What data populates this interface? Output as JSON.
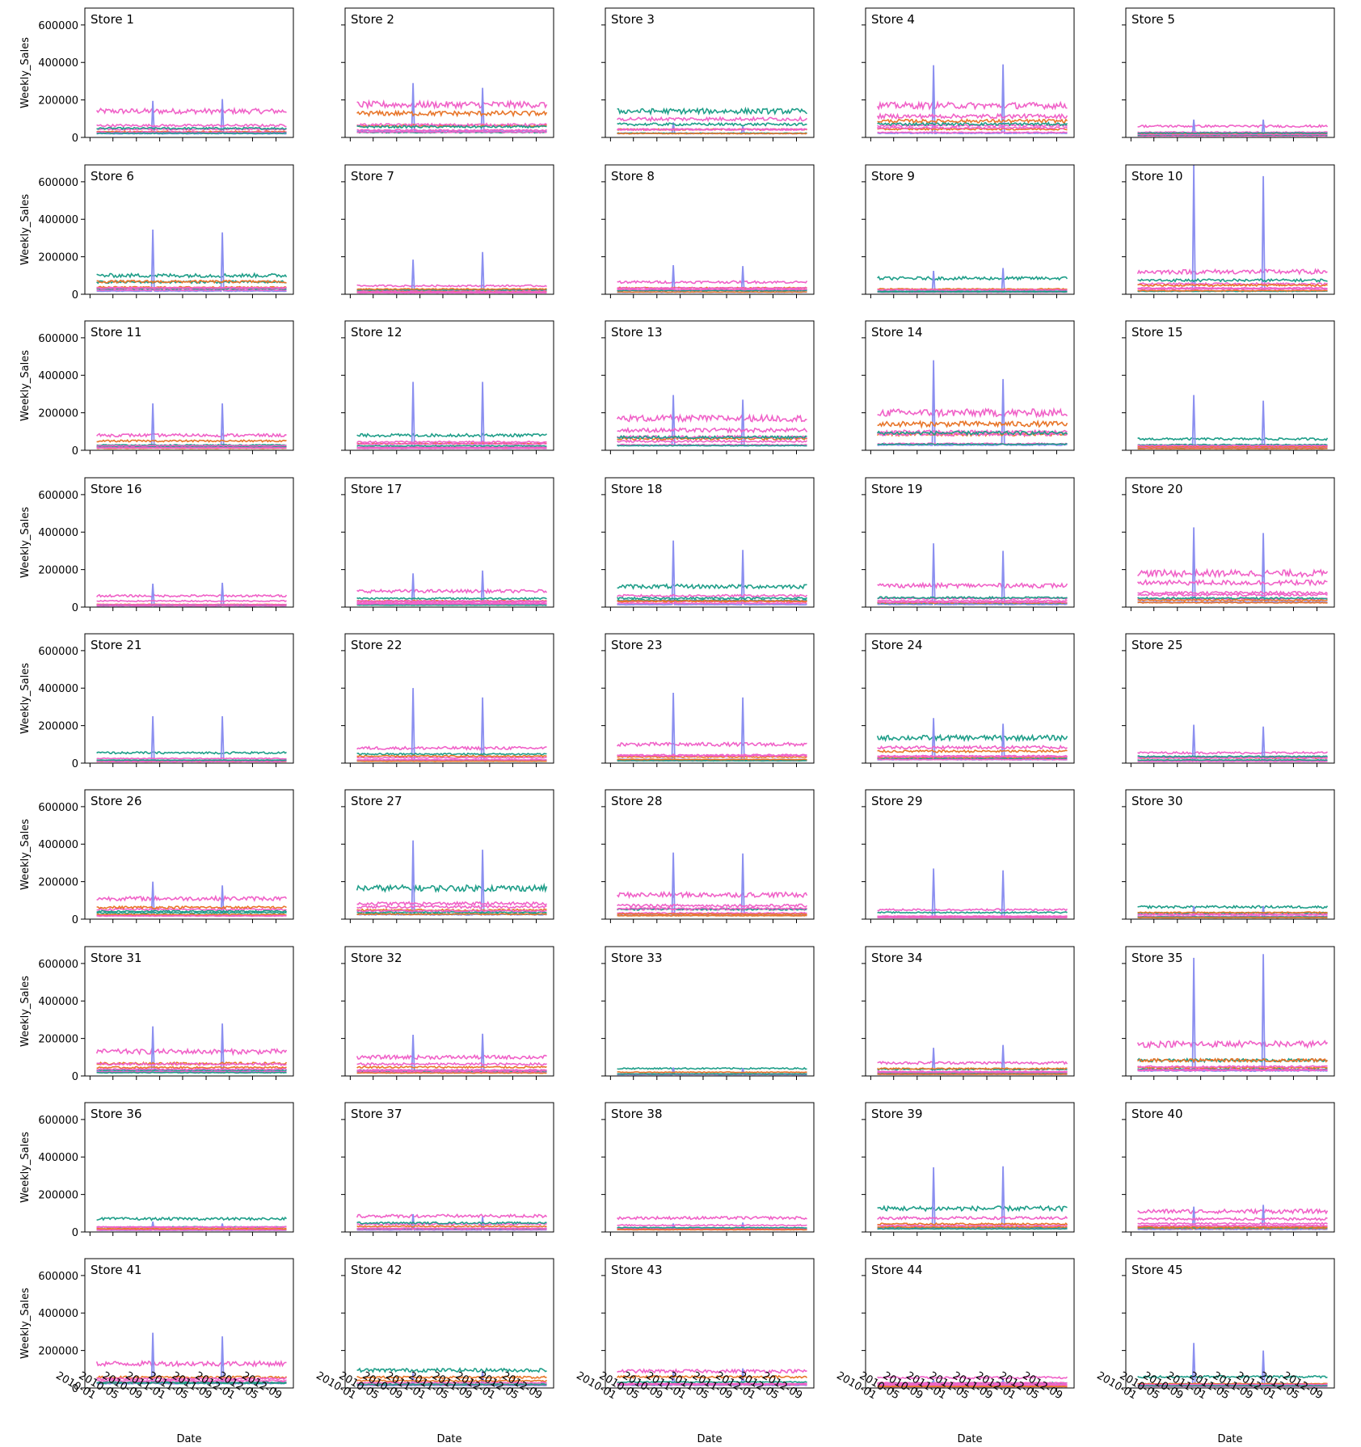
{
  "chart_data": {
    "type": "line",
    "layout": {
      "rows": 9,
      "cols": 5,
      "sharex": true,
      "sharey": true
    },
    "xlabel": "Date",
    "ylabel": "Weekly_Sales",
    "ylim": [
      0,
      690000
    ],
    "xlim": [
      "2009-12-05",
      "2012-12-01"
    ],
    "yticks": [
      0,
      200000,
      400000,
      600000
    ],
    "ytick_labels": [
      "0",
      "200000",
      "400000",
      "600000"
    ],
    "xticks": [
      "2010-01-01",
      "2010-05-01",
      "2010-09-01",
      "2011-01-01",
      "2011-05-01",
      "2011-09-01",
      "2012-01-01",
      "2012-05-01",
      "2012-09-01"
    ],
    "xtick_labels": [
      "2010-01",
      "2010-05",
      "2010-09",
      "2011-01",
      "2011-05",
      "2011-09",
      "2012-01",
      "2012-05",
      "2012-09"
    ],
    "date_range": [
      "2010-02-05",
      "2012-10-26"
    ],
    "palette": [
      "#1f9e89",
      "#e8762a",
      "#8b8ff0",
      "#f062c8"
    ],
    "series_note": "",
    "stores": [
      {
        "title": "Store 1",
        "top": 140000,
        "spikes": [
          195000,
          205000
        ]
      },
      {
        "title": "Store 2",
        "top": 175000,
        "spikes": [
          290000,
          265000
        ]
      },
      {
        "title": "Store 3",
        "top": 140000,
        "spikes": [
          80000,
          60000
        ]
      },
      {
        "title": "Store 4",
        "top": 170000,
        "spikes": [
          385000,
          390000
        ]
      },
      {
        "title": "Store 5",
        "top": 60000,
        "spikes": [
          95000,
          95000
        ]
      },
      {
        "title": "Store 6",
        "top": 100000,
        "spikes": [
          345000,
          330000
        ]
      },
      {
        "title": "Store 7",
        "top": 45000,
        "spikes": [
          185000,
          225000
        ]
      },
      {
        "title": "Store 8",
        "top": 65000,
        "spikes": [
          155000,
          150000
        ]
      },
      {
        "title": "Store 9",
        "top": 85000,
        "spikes": [
          125000,
          140000
        ]
      },
      {
        "title": "Store 10",
        "top": 120000,
        "spikes": [
          690000,
          630000
        ]
      },
      {
        "title": "Store 11",
        "top": 80000,
        "spikes": [
          250000,
          250000
        ]
      },
      {
        "title": "Store 12",
        "top": 80000,
        "spikes": [
          365000,
          365000
        ]
      },
      {
        "title": "Store 13",
        "top": 170000,
        "spikes": [
          295000,
          270000
        ]
      },
      {
        "title": "Store 14",
        "top": 200000,
        "spikes": [
          480000,
          380000
        ]
      },
      {
        "title": "Store 15",
        "top": 60000,
        "spikes": [
          295000,
          265000
        ]
      },
      {
        "title": "Store 16",
        "top": 60000,
        "spikes": [
          125000,
          130000
        ]
      },
      {
        "title": "Store 17",
        "top": 85000,
        "spikes": [
          180000,
          195000
        ]
      },
      {
        "title": "Store 18",
        "top": 110000,
        "spikes": [
          355000,
          305000
        ]
      },
      {
        "title": "Store 19",
        "top": 115000,
        "spikes": [
          340000,
          300000
        ]
      },
      {
        "title": "Store 20",
        "top": 180000,
        "spikes": [
          425000,
          395000
        ]
      },
      {
        "title": "Store 21",
        "top": 55000,
        "spikes": [
          250000,
          250000
        ]
      },
      {
        "title": "Store 22",
        "top": 80000,
        "spikes": [
          400000,
          350000
        ]
      },
      {
        "title": "Store 23",
        "top": 100000,
        "spikes": [
          375000,
          350000
        ]
      },
      {
        "title": "Store 24",
        "top": 135000,
        "spikes": [
          240000,
          210000
        ]
      },
      {
        "title": "Store 25",
        "top": 55000,
        "spikes": [
          205000,
          195000
        ]
      },
      {
        "title": "Store 26",
        "top": 110000,
        "spikes": [
          200000,
          180000
        ]
      },
      {
        "title": "Store 27",
        "top": 165000,
        "spikes": [
          420000,
          370000
        ]
      },
      {
        "title": "Store 28",
        "top": 130000,
        "spikes": [
          355000,
          350000
        ]
      },
      {
        "title": "Store 29",
        "top": 50000,
        "spikes": [
          270000,
          260000
        ]
      },
      {
        "title": "Store 30",
        "top": 65000,
        "spikes": [
          70000,
          70000
        ]
      },
      {
        "title": "Store 31",
        "top": 130000,
        "spikes": [
          265000,
          280000
        ]
      },
      {
        "title": "Store 32",
        "top": 100000,
        "spikes": [
          220000,
          225000
        ]
      },
      {
        "title": "Store 33",
        "top": 40000,
        "spikes": [
          45000,
          40000
        ]
      },
      {
        "title": "Store 34",
        "top": 70000,
        "spikes": [
          150000,
          165000
        ]
      },
      {
        "title": "Store 35",
        "top": 170000,
        "spikes": [
          630000,
          650000
        ]
      },
      {
        "title": "Store 36",
        "top": 70000,
        "spikes": [
          55000,
          45000
        ]
      },
      {
        "title": "Store 37",
        "top": 85000,
        "spikes": [
          95000,
          80000
        ]
      },
      {
        "title": "Store 38",
        "top": 75000,
        "spikes": [
          45000,
          50000
        ]
      },
      {
        "title": "Store 39",
        "top": 125000,
        "spikes": [
          345000,
          350000
        ]
      },
      {
        "title": "Store 40",
        "top": 110000,
        "spikes": [
          135000,
          145000
        ]
      },
      {
        "title": "Store 41",
        "top": 130000,
        "spikes": [
          295000,
          275000
        ]
      },
      {
        "title": "Store 42",
        "top": 95000,
        "spikes": [
          80000,
          90000
        ]
      },
      {
        "title": "Store 43",
        "top": 90000,
        "spikes": [
          85000,
          105000
        ]
      },
      {
        "title": "Store 44",
        "top": 55000,
        "spikes": [
          45000,
          50000
        ]
      },
      {
        "title": "Store 45",
        "top": 60000,
        "spikes": [
          240000,
          200000
        ]
      }
    ]
  }
}
